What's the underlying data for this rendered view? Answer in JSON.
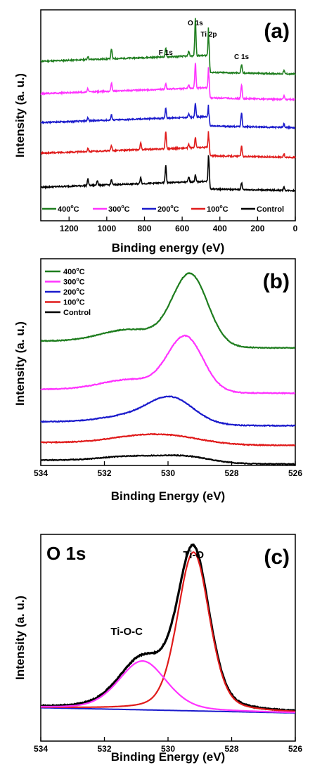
{
  "chart_data": [
    {
      "type": "line",
      "panel_label": "(a)",
      "xlabel": "Binding energy (eV)",
      "ylabel": "Intensity (a. u.)",
      "xlim": [
        1350,
        0
      ],
      "x_ticks": [
        1200,
        1000,
        800,
        600,
        400,
        200,
        0
      ],
      "x_tick_labels": [
        "1200",
        "1000",
        "800",
        "600",
        "400",
        "200",
        "0"
      ],
      "annotations": [
        {
          "text": "F 1s",
          "x": 687
        },
        {
          "text": "O 1s",
          "x": 530
        },
        {
          "text": "Ti 2p",
          "x": 459
        },
        {
          "text": "C 1s",
          "x": 285
        }
      ],
      "legend_placement": "bottom",
      "series": [
        {
          "name": "400",
          "unit": "oC",
          "color": "#1e7d1e",
          "baseline": 0.84,
          "tail": 0.73,
          "peaks": [
            [
              1100,
              0.02
            ],
            [
              975,
              0.06
            ],
            [
              687,
              0.05
            ],
            [
              565,
              0.03
            ],
            [
              530,
              0.22
            ],
            [
              459,
              0.2
            ],
            [
              285,
              0.05
            ],
            [
              60,
              0.02
            ]
          ]
        },
        {
          "name": "300",
          "unit": "oC",
          "color": "#ff33ff",
          "baseline": 0.65,
          "tail": 0.58,
          "peaks": [
            [
              1100,
              0.02
            ],
            [
              975,
              0.05
            ],
            [
              687,
              0.03
            ],
            [
              565,
              0.02
            ],
            [
              530,
              0.15
            ],
            [
              459,
              0.14
            ],
            [
              285,
              0.08
            ],
            [
              60,
              0.02
            ]
          ]
        },
        {
          "name": "200",
          "unit": "oC",
          "color": "#1a1acc",
          "baseline": 0.48,
          "tail": 0.415,
          "peaks": [
            [
              1100,
              0.02
            ],
            [
              975,
              0.03
            ],
            [
              687,
              0.06
            ],
            [
              565,
              0.02
            ],
            [
              530,
              0.08
            ],
            [
              459,
              0.08
            ],
            [
              285,
              0.08
            ],
            [
              60,
              0.02
            ]
          ]
        },
        {
          "name": "100",
          "unit": "oC",
          "color": "#e01b1b",
          "baseline": 0.3,
          "tail": 0.24,
          "peaks": [
            [
              1100,
              0.02
            ],
            [
              975,
              0.03
            ],
            [
              820,
              0.04
            ],
            [
              687,
              0.1
            ],
            [
              565,
              0.02
            ],
            [
              530,
              0.06
            ],
            [
              459,
              0.11
            ],
            [
              285,
              0.06
            ],
            [
              60,
              0.02
            ]
          ]
        },
        {
          "name": "Control",
          "unit": "",
          "color": "#000000",
          "baseline": 0.1,
          "tail": 0.045,
          "peaks": [
            [
              1100,
              0.04
            ],
            [
              1050,
              0.03
            ],
            [
              975,
              0.03
            ],
            [
              820,
              0.04
            ],
            [
              687,
              0.1
            ],
            [
              565,
              0.03
            ],
            [
              530,
              0.04
            ],
            [
              459,
              0.18
            ],
            [
              285,
              0.04
            ],
            [
              60,
              0.02
            ]
          ]
        }
      ]
    },
    {
      "type": "line",
      "panel_label": "(b)",
      "xlabel": "Binding Energy (eV)",
      "ylabel": "Intensity (a. u.)",
      "xlim": [
        534,
        526
      ],
      "x_ticks": [
        534,
        532,
        530,
        528,
        526
      ],
      "x_tick_labels": [
        "534",
        "532",
        "530",
        "528",
        "526"
      ],
      "legend_placement": "top-left",
      "series": [
        {
          "name": "400",
          "unit": "oC",
          "color": "#1e7d1e",
          "left": 0.625,
          "right": 0.59,
          "amp": 0.35,
          "center": 529.3,
          "width": 0.55,
          "shoulder": 0.06
        },
        {
          "name": "300",
          "unit": "oC",
          "color": "#ff33ff",
          "left": 0.38,
          "right": 0.36,
          "amp": 0.27,
          "center": 529.45,
          "width": 0.55,
          "shoulder": 0.05
        },
        {
          "name": "200",
          "unit": "oC",
          "color": "#1a1acc",
          "left": 0.215,
          "right": 0.195,
          "amp": 0.12,
          "center": 529.9,
          "width": 0.7,
          "shoulder": 0.03
        },
        {
          "name": "100",
          "unit": "oC",
          "color": "#e01b1b",
          "left": 0.11,
          "right": 0.095,
          "amp": 0.035,
          "center": 530.0,
          "width": 1.1,
          "shoulder": 0.015
        },
        {
          "name": "Control",
          "unit": "",
          "color": "#000000",
          "left": 0.02,
          "right": 0.0,
          "amp": 0.025,
          "center": 529.4,
          "width": 0.8,
          "shoulder": 0.02
        }
      ]
    },
    {
      "type": "line",
      "panel_label": "(c)",
      "title": "O 1s",
      "xlabel": "Binding Energy (eV)",
      "ylabel": "Intensity (a. u.)",
      "xlim": [
        534,
        526
      ],
      "x_ticks": [
        534,
        532,
        530,
        528,
        526
      ],
      "x_tick_labels": [
        "534",
        "532",
        "530",
        "528",
        "526"
      ],
      "annotations": [
        {
          "text": "Ti-O",
          "x": 529.2
        },
        {
          "text": "Ti-O-C",
          "x": 530.8
        }
      ],
      "components": [
        {
          "label": "Ti-O",
          "color": "#e01b1b",
          "center": 529.2,
          "sigma": 0.5,
          "amp": 0.91
        },
        {
          "label": "Ti-O-C",
          "color": "#ff33ff",
          "center": 530.8,
          "sigma": 0.75,
          "amp": 0.28
        }
      ],
      "background": {
        "color": "#1a1acc",
        "left": 0.03,
        "right": 0.0
      },
      "envelope": {
        "color": "#000000"
      }
    }
  ]
}
